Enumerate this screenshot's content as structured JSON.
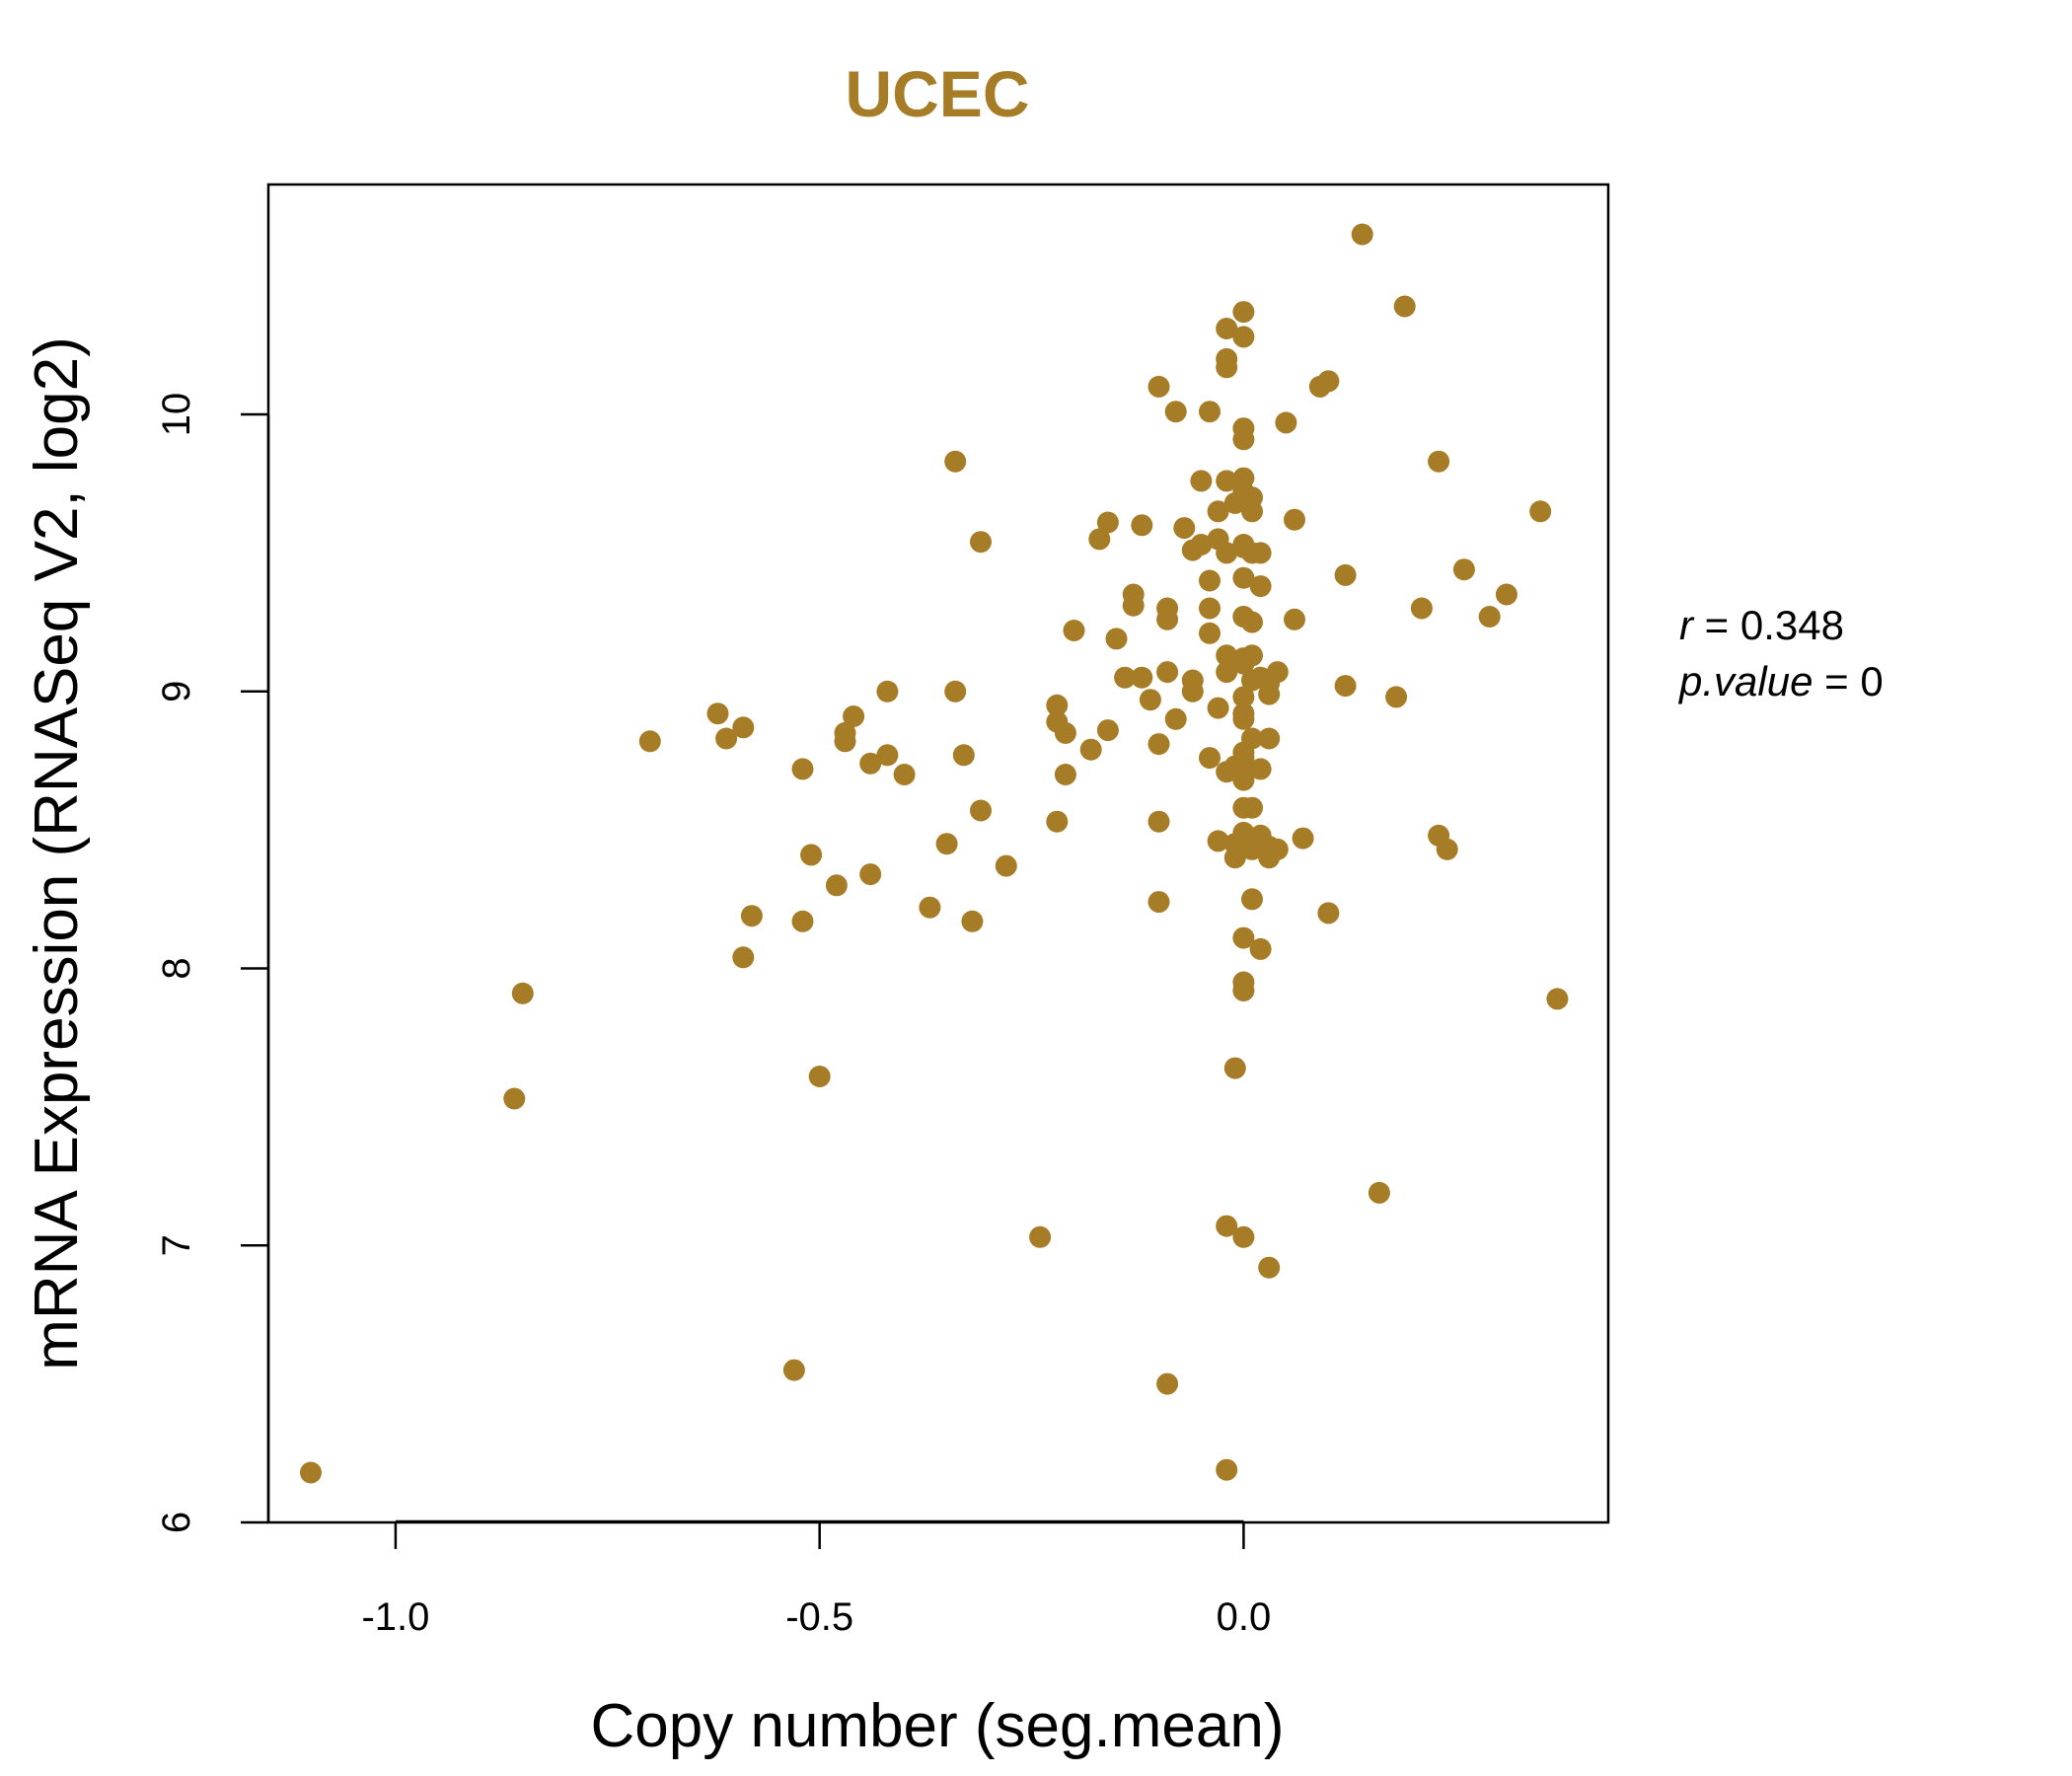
{
  "colors": {
    "accent": "#a67c26",
    "axis": "#000000",
    "background": "#ffffff"
  },
  "chart_data": {
    "type": "scatter",
    "title": "UCEC",
    "xlabel": "Copy number (seg.mean)",
    "ylabel": "mRNA Expression (RNASeq V2, log2)",
    "xlim": [
      -1.15,
      0.43
    ],
    "ylim": [
      6,
      10.83
    ],
    "xticks": [
      -1.0,
      -0.5,
      0.0
    ],
    "xtick_labels": [
      "-1.0",
      "-0.5",
      "0.0"
    ],
    "yticks": [
      6,
      7,
      8,
      9,
      10
    ],
    "ytick_labels": [
      "6",
      "7",
      "8",
      "9",
      "10"
    ],
    "grid": false,
    "annotations": {
      "r_label": "r",
      "r_value": "0.348",
      "p_label": "p.value",
      "p_value": "0"
    },
    "points": [
      [
        -1.1,
        6.18
      ],
      [
        -0.86,
        7.53
      ],
      [
        -0.85,
        7.91
      ],
      [
        -0.7,
        8.82
      ],
      [
        -0.62,
        8.92
      ],
      [
        -0.61,
        8.83
      ],
      [
        -0.59,
        8.87
      ],
      [
        -0.59,
        8.04
      ],
      [
        -0.58,
        8.19
      ],
      [
        -0.53,
        6.55
      ],
      [
        -0.52,
        8.72
      ],
      [
        -0.52,
        8.17
      ],
      [
        -0.51,
        8.41
      ],
      [
        -0.5,
        7.61
      ],
      [
        -0.48,
        8.3
      ],
      [
        -0.47,
        8.82
      ],
      [
        -0.47,
        8.85
      ],
      [
        -0.46,
        8.91
      ],
      [
        -0.44,
        8.74
      ],
      [
        -0.44,
        8.34
      ],
      [
        -0.42,
        9.0
      ],
      [
        -0.42,
        8.77
      ],
      [
        -0.4,
        8.7
      ],
      [
        -0.37,
        8.22
      ],
      [
        -0.35,
        8.45
      ],
      [
        -0.34,
        9.83
      ],
      [
        -0.34,
        9.0
      ],
      [
        -0.33,
        8.77
      ],
      [
        -0.32,
        8.17
      ],
      [
        -0.31,
        9.54
      ],
      [
        -0.31,
        8.57
      ],
      [
        -0.28,
        8.37
      ],
      [
        -0.24,
        7.03
      ],
      [
        -0.22,
        8.89
      ],
      [
        -0.22,
        8.95
      ],
      [
        -0.22,
        8.53
      ],
      [
        -0.21,
        8.7
      ],
      [
        -0.21,
        8.85
      ],
      [
        -0.2,
        9.22
      ],
      [
        -0.18,
        8.79
      ],
      [
        -0.17,
        9.55
      ],
      [
        -0.16,
        9.61
      ],
      [
        -0.16,
        8.86
      ],
      [
        -0.15,
        9.19
      ],
      [
        -0.14,
        9.05
      ],
      [
        -0.13,
        9.35
      ],
      [
        -0.13,
        9.31
      ],
      [
        -0.12,
        9.6
      ],
      [
        -0.12,
        9.05
      ],
      [
        -0.11,
        8.97
      ],
      [
        -0.1,
        10.1
      ],
      [
        -0.1,
        8.81
      ],
      [
        -0.1,
        8.53
      ],
      [
        -0.1,
        8.24
      ],
      [
        -0.09,
        9.26
      ],
      [
        -0.09,
        9.3
      ],
      [
        -0.09,
        9.07
      ],
      [
        -0.09,
        6.5
      ],
      [
        -0.08,
        10.01
      ],
      [
        -0.08,
        8.9
      ],
      [
        -0.07,
        9.59
      ],
      [
        -0.06,
        9.51
      ],
      [
        -0.06,
        9.04
      ],
      [
        -0.06,
        9.0
      ],
      [
        -0.05,
        9.76
      ],
      [
        -0.05,
        9.53
      ],
      [
        -0.04,
        10.01
      ],
      [
        -0.04,
        9.4
      ],
      [
        -0.04,
        9.3
      ],
      [
        -0.04,
        9.21
      ],
      [
        -0.04,
        8.76
      ],
      [
        -0.03,
        9.65
      ],
      [
        -0.03,
        9.55
      ],
      [
        -0.03,
        8.94
      ],
      [
        -0.03,
        8.46
      ],
      [
        -0.02,
        10.17
      ],
      [
        -0.02,
        9.76
      ],
      [
        -0.02,
        9.5
      ],
      [
        -0.02,
        9.13
      ],
      [
        -0.02,
        9.07
      ],
      [
        -0.02,
        8.71
      ],
      [
        -0.02,
        7.07
      ],
      [
        -0.02,
        6.19
      ],
      [
        -0.02,
        10.31
      ],
      [
        -0.02,
        10.2
      ],
      [
        -0.01,
        8.4
      ],
      [
        -0.01,
        7.64
      ],
      [
        -0.01,
        9.11
      ],
      [
        -0.01,
        8.73
      ],
      [
        -0.01,
        8.45
      ],
      [
        -0.01,
        9.68
      ],
      [
        0.0,
        9.77
      ],
      [
        0.0,
        9.52
      ],
      [
        0.0,
        9.27
      ],
      [
        0.0,
        9.1
      ],
      [
        0.0,
        8.92
      ],
      [
        0.0,
        8.78
      ],
      [
        0.0,
        8.7
      ],
      [
        0.0,
        8.58
      ],
      [
        0.0,
        8.46
      ],
      [
        0.0,
        8.11
      ],
      [
        0.0,
        7.03
      ],
      [
        0.0,
        10.37
      ],
      [
        0.0,
        9.95
      ],
      [
        0.0,
        9.72
      ],
      [
        0.0,
        9.53
      ],
      [
        0.0,
        9.27
      ],
      [
        0.0,
        9.12
      ],
      [
        0.0,
        8.98
      ],
      [
        0.0,
        8.9
      ],
      [
        0.0,
        8.76
      ],
      [
        0.0,
        8.68
      ],
      [
        0.0,
        8.49
      ],
      [
        0.0,
        7.95
      ],
      [
        0.0,
        7.92
      ],
      [
        0.0,
        10.28
      ],
      [
        0.0,
        9.91
      ],
      [
        0.0,
        9.41
      ],
      [
        0.01,
        9.7
      ],
      [
        0.01,
        9.65
      ],
      [
        0.01,
        9.5
      ],
      [
        0.01,
        9.25
      ],
      [
        0.01,
        9.13
      ],
      [
        0.01,
        9.04
      ],
      [
        0.01,
        8.83
      ],
      [
        0.01,
        8.58
      ],
      [
        0.01,
        8.43
      ],
      [
        0.01,
        8.25
      ],
      [
        0.02,
        9.5
      ],
      [
        0.02,
        9.38
      ],
      [
        0.02,
        9.05
      ],
      [
        0.02,
        8.72
      ],
      [
        0.02,
        8.48
      ],
      [
        0.02,
        8.07
      ],
      [
        0.03,
        8.4
      ],
      [
        0.03,
        8.83
      ],
      [
        0.03,
        6.92
      ],
      [
        0.03,
        9.03
      ],
      [
        0.03,
        8.99
      ],
      [
        0.03,
        8.44
      ],
      [
        0.04,
        9.07
      ],
      [
        0.04,
        8.43
      ],
      [
        0.05,
        9.97
      ],
      [
        0.06,
        9.26
      ],
      [
        0.06,
        9.62
      ],
      [
        0.07,
        8.47
      ],
      [
        0.09,
        10.1
      ],
      [
        0.1,
        10.12
      ],
      [
        0.1,
        8.2
      ],
      [
        0.12,
        9.42
      ],
      [
        0.12,
        9.02
      ],
      [
        0.14,
        10.65
      ],
      [
        0.16,
        7.19
      ],
      [
        0.18,
        8.98
      ],
      [
        0.19,
        10.39
      ],
      [
        0.21,
        9.3
      ],
      [
        0.23,
        9.83
      ],
      [
        0.23,
        8.48
      ],
      [
        0.24,
        8.43
      ],
      [
        0.26,
        9.44
      ],
      [
        0.29,
        9.27
      ],
      [
        0.31,
        9.35
      ],
      [
        0.35,
        9.65
      ],
      [
        0.37,
        7.89
      ]
    ]
  }
}
